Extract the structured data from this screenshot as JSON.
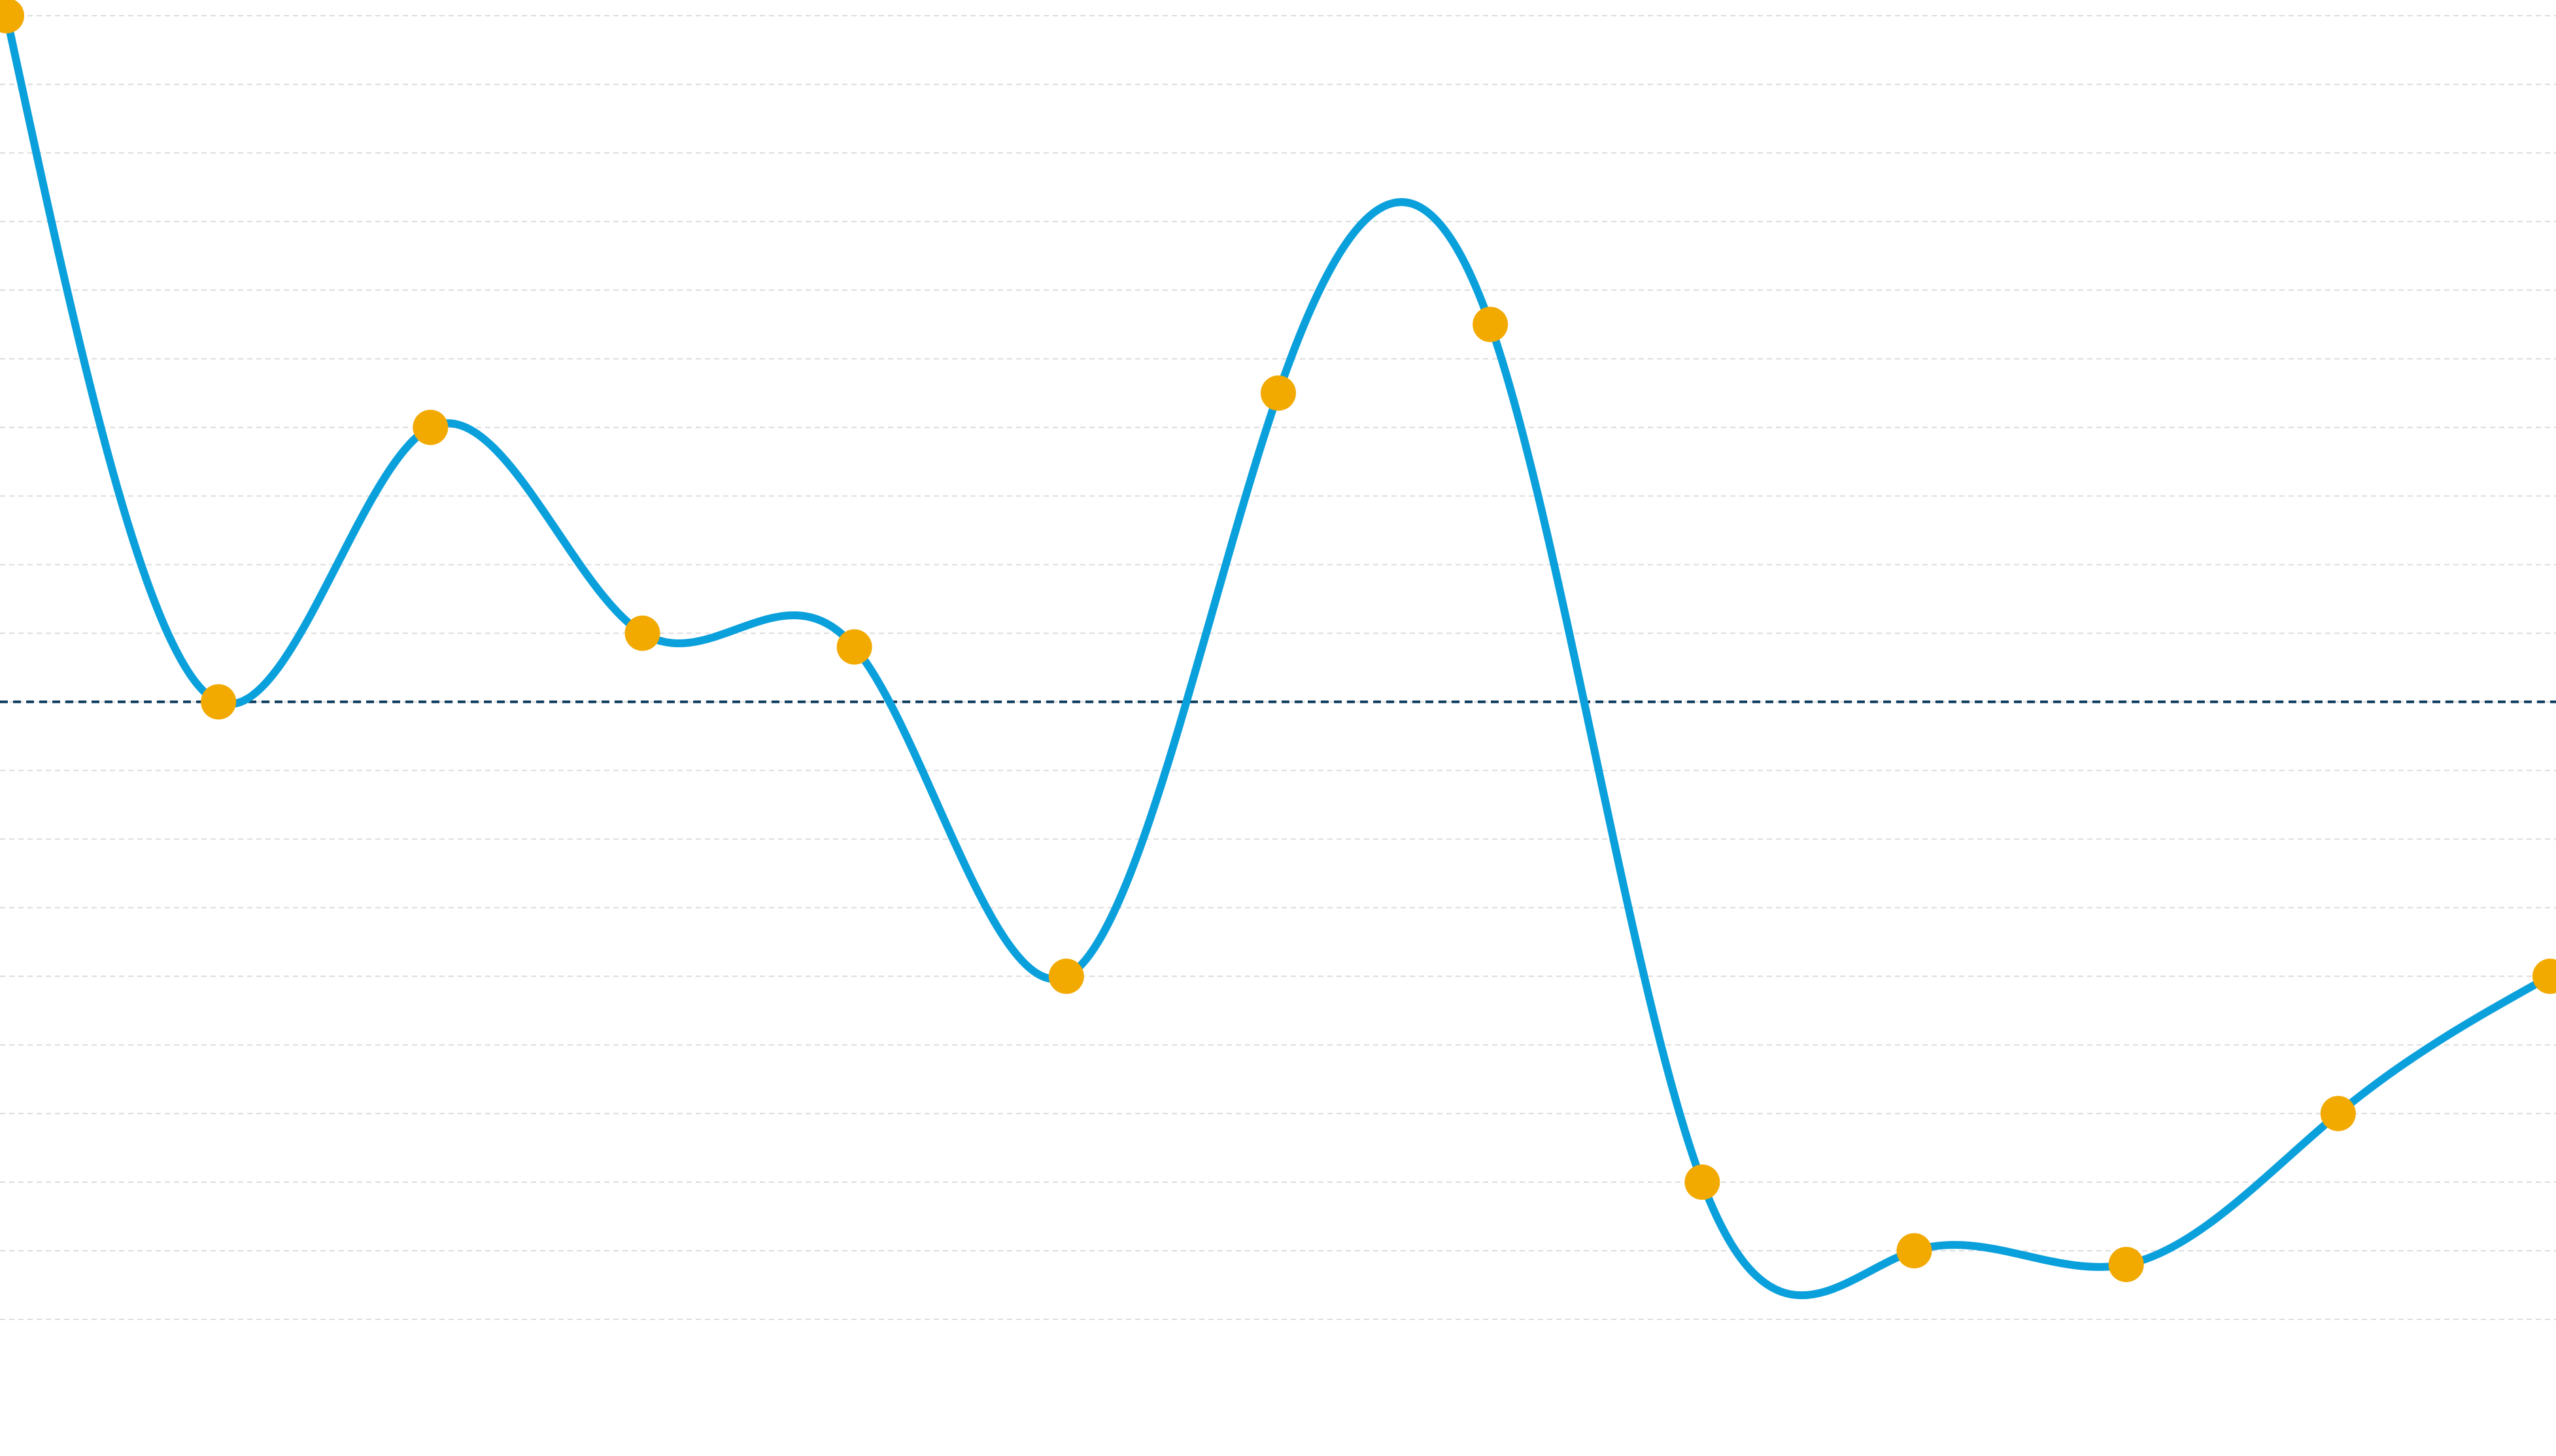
{
  "chart_data": {
    "type": "line",
    "title": "",
    "xlabel": "",
    "ylabel": "",
    "x": [
      0,
      1,
      2,
      3,
      4,
      5,
      6,
      7,
      8,
      9,
      10,
      11,
      12
    ],
    "series": [
      {
        "values": [
          20.0,
          10.0,
          14.0,
          11.0,
          10.8,
          6.0,
          14.5,
          15.5,
          3.0,
          2.0,
          1.8,
          4.0,
          6.0
        ],
        "line_color": "#0aa0dc",
        "marker_color": "#f2a900"
      }
    ],
    "reference_line": {
      "value": 10.0,
      "style": "dashed",
      "color": "#0b3a5c"
    },
    "ylim": [
      0.0,
      20.2
    ],
    "y_gridlines": [
      1,
      2,
      3,
      4,
      5,
      6,
      7,
      8,
      9,
      10,
      11,
      12,
      13,
      14,
      15,
      16,
      17,
      18,
      19,
      20
    ],
    "grid": true,
    "grid_style": "dashed",
    "grid_color": "#dcdcdc",
    "background_color": "#ffffff",
    "curve": "smooth",
    "legend": "none"
  }
}
